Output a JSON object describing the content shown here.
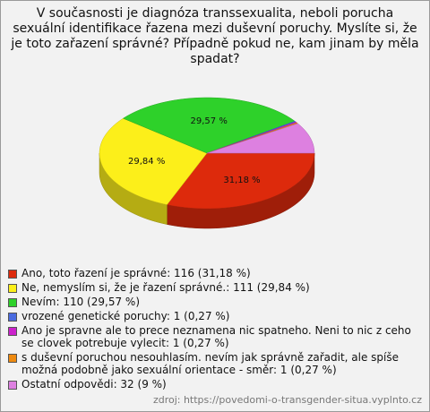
{
  "chart_data": {
    "type": "pie3d",
    "title": "V současnosti je diagnóza transsexualita, neboli porucha sexuální identifikace řazena mezi duševní poruchy. Myslíte si, že je toto zařazení správné? Případně pokud ne, kam jinam by měla spadat?",
    "categories": [
      "Ano, toto řazení je správné: 116 (31,18 %)",
      "Ne, nemyslím si, že je řazení správné.: 111 (29,84 %)",
      "Nevím: 110 (29,57 %)",
      "vrozené genetické poruchy: 1 (0,27 %)",
      "Ano je spravne ale to prece neznamena nic spatneho. Neni to nic z ceho se clovek potrebuje vylecit: 1 (0,27 %)",
      "s duševní poruchou nesouhlasím. nevím jak správně zařadit, ale spíše možná podobně jako sexuální orientace - směr: 1 (0,27 %)",
      "Ostatní odpovědi: 32 (9 %)"
    ],
    "values": [
      31.18,
      29.84,
      29.57,
      0.27,
      0.27,
      0.27,
      9
    ],
    "value_labels": [
      "31,18 %",
      "29,84 %",
      "29,57 %",
      null,
      null,
      null,
      null
    ],
    "colors": [
      "#dd2a0c",
      "#fcef1a",
      "#2ed12a",
      "#4a6be0",
      "#cc22cc",
      "#ee8a10",
      "#dd80e0"
    ],
    "source": "zdroj: https://povedomi-o-transgender-situa.vyplnto.cz"
  }
}
